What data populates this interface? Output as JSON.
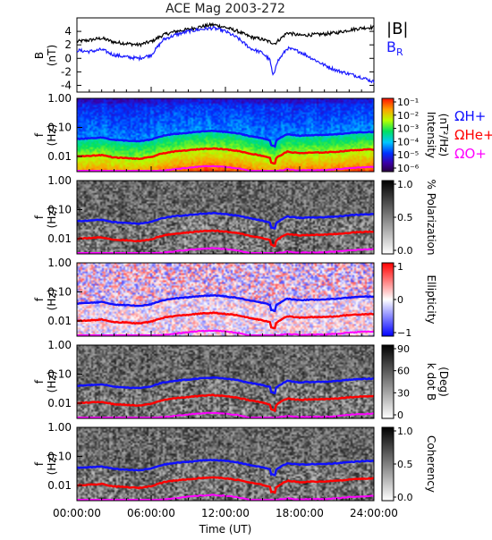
{
  "title": "ACE Mag 2003-272",
  "xlabel": "Time (UT)",
  "xticks": [
    "00:00:00",
    "06:00:00",
    "12:00:00",
    "18:00:00",
    "24:00:00"
  ],
  "colors": {
    "B_total": "#000000",
    "B_R": "#1a1aff",
    "H_plus": "#1010ff",
    "He_plus": "#ff0000",
    "O_plus": "#ff00ff"
  },
  "chart_data": [
    {
      "id": "field",
      "type": "line",
      "ylabel": "B",
      "yunit": "(nT)",
      "ylim": [
        -5,
        6
      ],
      "yticks": [
        "4",
        "2",
        "0",
        "-2",
        "-4"
      ],
      "xlim_hours": [
        0,
        24
      ],
      "legend_placement": "right",
      "legend": {
        "btot": "|B|",
        "br": "B",
        "br_sub": "R"
      },
      "series": [
        {
          "key": "btot",
          "x": [
            0,
            1,
            2,
            3,
            4,
            5,
            6,
            7,
            8,
            9,
            10,
            11,
            12,
            13,
            14,
            15,
            16,
            17,
            18,
            19,
            20,
            21,
            22,
            23,
            24
          ],
          "values": [
            2.5,
            2.7,
            3.0,
            2.4,
            2.2,
            2.0,
            2.5,
            3.5,
            4.0,
            4.3,
            4.7,
            5.0,
            4.6,
            4.0,
            3.2,
            2.8,
            2.2,
            3.8,
            3.4,
            3.5,
            3.6,
            3.8,
            4.2,
            4.5,
            4.6
          ]
        },
        {
          "key": "br",
          "x": [
            0,
            1,
            2,
            3,
            4,
            5,
            6,
            7,
            8,
            9,
            10,
            11,
            12,
            13,
            14,
            15,
            16,
            17,
            18,
            19,
            20,
            21,
            22,
            23,
            24
          ],
          "values": [
            1.2,
            1.0,
            1.3,
            0.5,
            0.2,
            0.0,
            0.5,
            2.8,
            3.5,
            4.0,
            4.3,
            4.5,
            4.0,
            3.0,
            1.5,
            0.8,
            -1.0,
            1.5,
            1.0,
            0.0,
            -1.0,
            -1.8,
            -2.3,
            -2.8,
            -3.5
          ]
        }
      ]
    },
    {
      "id": "intensity",
      "type": "heatmap",
      "ylabel": "f",
      "yunit": "(Hz)",
      "yscale": "log",
      "ylim": [
        0.003,
        1.0
      ],
      "yticks": [
        "1.00",
        "0.10",
        "0.01"
      ],
      "colorbar": {
        "label": "Intensity",
        "unit": "(nT²/Hz)",
        "ticks": [
          "10⁻¹",
          "10⁻²",
          "10⁻³",
          "10⁻⁴",
          "10⁻⁵",
          "10⁻⁶"
        ]
      },
      "legend": [
        "ΩH+",
        "ΩHe+",
        "ΩO+"
      ]
    },
    {
      "id": "polarization",
      "type": "heatmap",
      "ylabel": "f",
      "yunit": "(Hz)",
      "yscale": "log",
      "ylim": [
        0.003,
        1.0
      ],
      "yticks": [
        "1.00",
        "0.10",
        "0.01"
      ],
      "colorbar": {
        "label": "% Polarization",
        "unit": "",
        "ticks": [
          "1.0",
          "0.5",
          "0.0"
        ]
      }
    },
    {
      "id": "ellipticity",
      "type": "heatmap",
      "ylabel": "f",
      "yunit": "(Hz)",
      "yscale": "log",
      "ylim": [
        0.003,
        1.0
      ],
      "yticks": [
        "1.00",
        "0.10",
        "0.01"
      ],
      "colorbar": {
        "label": "Ellipticity",
        "unit": "",
        "ticks": [
          "1",
          "0",
          "−1"
        ]
      }
    },
    {
      "id": "kdotb",
      "type": "heatmap",
      "ylabel": "f",
      "yunit": "(Hz)",
      "yscale": "log",
      "ylim": [
        0.003,
        1.0
      ],
      "yticks": [
        "1.00",
        "0.10",
        "0.01"
      ],
      "colorbar": {
        "label": "k dot B",
        "unit": "(Deg)",
        "ticks": [
          "90",
          "60",
          "30",
          "0"
        ]
      }
    },
    {
      "id": "coherency",
      "type": "heatmap",
      "ylabel": "f",
      "yunit": "(Hz)",
      "yscale": "log",
      "ylim": [
        0.003,
        1.0
      ],
      "yticks": [
        "1.00",
        "0.10",
        "0.01"
      ],
      "colorbar": {
        "label": "Coherency",
        "unit": "",
        "ticks": [
          "1.0",
          "0.5",
          "0.0"
        ]
      }
    }
  ],
  "gyrofrequencies": {
    "x": [
      0,
      1,
      2,
      3,
      4,
      5,
      6,
      7,
      8,
      9,
      10,
      11,
      12,
      13,
      14,
      15,
      16,
      17,
      18,
      19,
      20,
      21,
      22,
      23,
      24
    ],
    "H_plus": [
      0.04,
      0.042,
      0.045,
      0.037,
      0.035,
      0.033,
      0.038,
      0.052,
      0.06,
      0.065,
      0.072,
      0.076,
      0.07,
      0.062,
      0.05,
      0.042,
      0.032,
      0.058,
      0.052,
      0.054,
      0.055,
      0.058,
      0.064,
      0.068,
      0.07
    ],
    "He_plus": [
      0.01,
      0.0105,
      0.0112,
      0.0092,
      0.0088,
      0.0082,
      0.0095,
      0.013,
      0.015,
      0.0163,
      0.018,
      0.019,
      0.0175,
      0.0155,
      0.0125,
      0.0105,
      0.008,
      0.0145,
      0.013,
      0.0135,
      0.0138,
      0.0145,
      0.016,
      0.017,
      0.0175
    ],
    "O_plus": [
      0.003,
      0.0031,
      0.0031,
      0.0031,
      0.0031,
      0.003,
      0.0031,
      0.0033,
      0.0037,
      0.0041,
      0.0045,
      0.0047,
      0.0044,
      0.0039,
      0.0031,
      0.0031,
      0.0031,
      0.0036,
      0.0033,
      0.0034,
      0.0034,
      0.0036,
      0.004,
      0.0042,
      0.0044
    ]
  }
}
